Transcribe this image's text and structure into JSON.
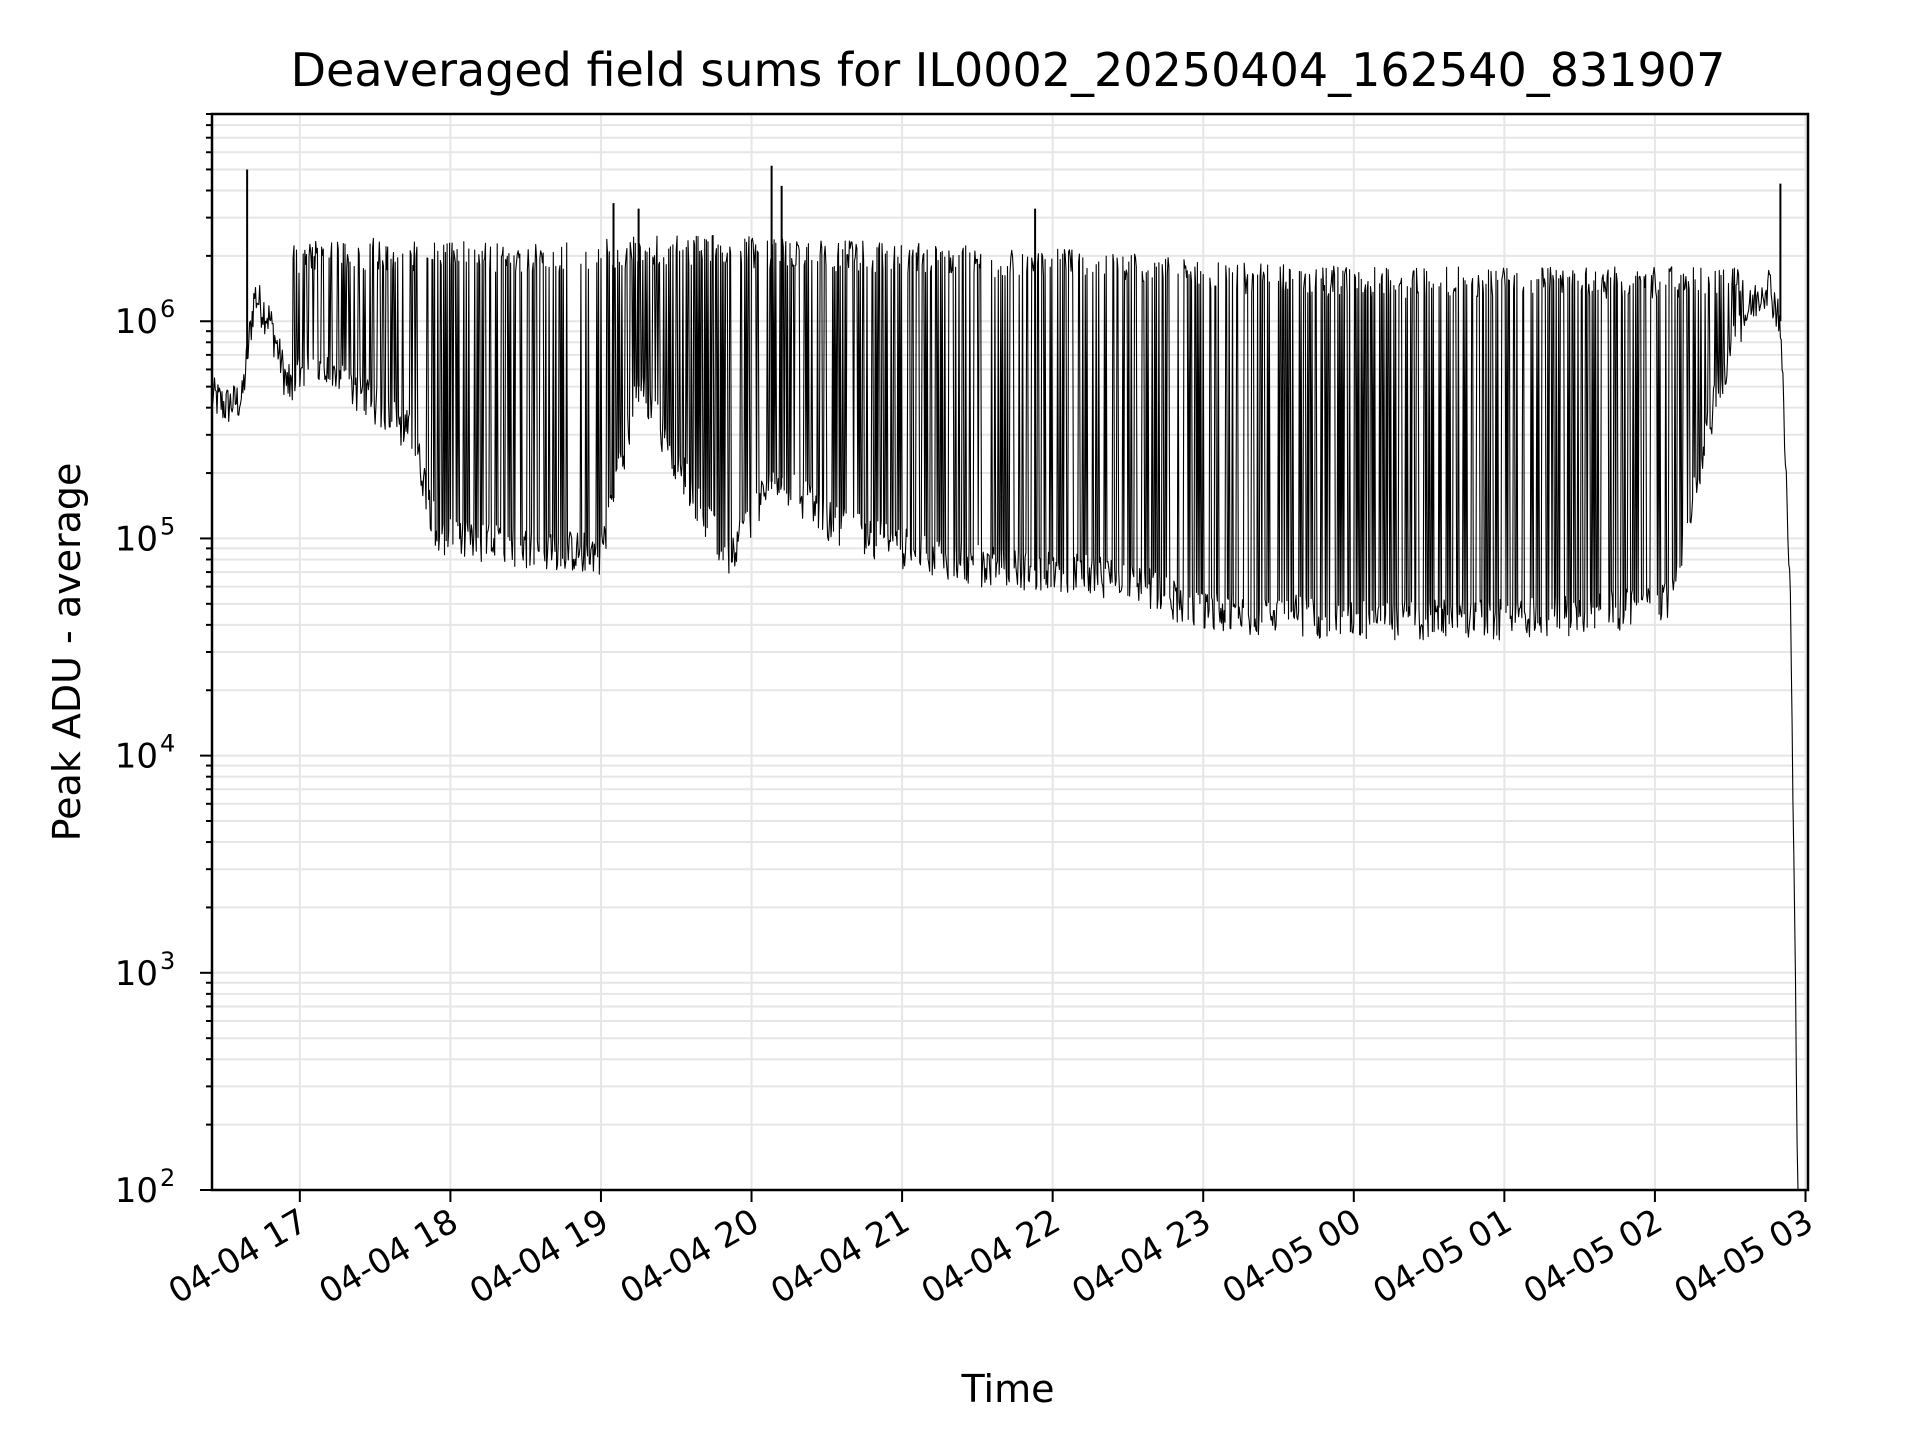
{
  "chart_data": {
    "type": "line",
    "title": "Deaveraged field sums for IL0002_20250404_162540_831907",
    "xlabel": "Time",
    "ylabel": "Peak ADU - average",
    "yscale": "log",
    "xlim": [
      "2025-04-04 16:25",
      "2025-04-05 03:01"
    ],
    "ylim": [
      100,
      9000000
    ],
    "grid": true,
    "grid_color": "#e6e6e6",
    "line_color": "#000000",
    "x_ticks": [
      "04-04 17",
      "04-04 18",
      "04-04 19",
      "04-04 20",
      "04-04 21",
      "04-04 22",
      "04-04 23",
      "04-05 00",
      "04-05 01",
      "04-05 02",
      "04-05 03"
    ],
    "y_ticks": [
      {
        "base": "10",
        "exp": "2"
      },
      {
        "base": "10",
        "exp": "3"
      },
      {
        "base": "10",
        "exp": "4"
      },
      {
        "base": "10",
        "exp": "5"
      },
      {
        "base": "10",
        "exp": "6"
      }
    ],
    "series": [
      {
        "baseline_x": [
          "2025-04-04 16:25",
          "2025-04-04 16:30",
          "2025-04-04 16:37",
          "2025-04-04 16:42",
          "2025-04-04 16:48",
          "2025-04-04 16:55",
          "2025-04-04 17:05",
          "2025-04-04 17:20",
          "2025-04-04 17:45",
          "2025-04-04 17:55",
          "2025-04-04 18:30",
          "2025-04-04 19:00",
          "2025-04-04 19:15",
          "2025-04-04 19:25",
          "2025-04-04 19:50",
          "2025-04-04 20:10",
          "2025-04-04 20:30",
          "2025-04-04 21:00",
          "2025-04-04 21:30",
          "2025-04-04 22:00",
          "2025-04-04 22:30",
          "2025-04-04 23:00",
          "2025-04-04 23:30",
          "2025-04-05 00:00",
          "2025-04-05 00:30",
          "2025-04-05 01:00",
          "2025-04-05 01:30",
          "2025-04-05 02:00",
          "2025-04-05 02:06",
          "2025-04-05 02:15",
          "2025-04-05 02:25",
          "2025-04-05 02:35",
          "2025-04-05 02:45",
          "2025-04-05 02:50",
          "2025-04-05 02:54",
          "2025-04-05 02:57"
        ],
        "baseline_y": [
          450000,
          400000,
          430000,
          1300000,
          1000000,
          500000,
          600000,
          500000,
          300000,
          100000,
          90000,
          85000,
          500000,
          300000,
          80000,
          200000,
          120000,
          90000,
          75000,
          70000,
          65000,
          45000,
          45000,
          42000,
          42000,
          42000,
          45000,
          48000,
          55000,
          150000,
          500000,
          1000000,
          1500000,
          1000000,
          50000,
          100
        ],
        "high_envelope_y": [
          2200000,
          2300000,
          2200000,
          2400000,
          2300000,
          2200000,
          2100000,
          2000000,
          1800000,
          1700000,
          1700000,
          1700000,
          1700000
        ],
        "high_envelope_x": [
          "2025-04-04 16:55",
          "2025-04-04 17:30",
          "2025-04-04 18:30",
          "2025-04-04 19:30",
          "2025-04-04 20:15",
          "2025-04-04 21:00",
          "2025-04-04 21:45",
          "2025-04-04 22:30",
          "2025-04-04 23:00",
          "2025-04-05 00:00",
          "2025-04-05 01:00",
          "2025-04-05 02:00",
          "2025-04-05 02:30"
        ],
        "spikes_x": [
          "2025-04-04 16:39",
          "2025-04-04 19:05",
          "2025-04-04 19:15",
          "2025-04-04 20:08",
          "2025-04-04 20:12",
          "2025-04-04 21:53",
          "2025-04-05 02:50"
        ],
        "spikes_y": [
          5000000,
          3500000,
          3300000,
          5200000,
          4200000,
          3300000,
          4300000
        ]
      }
    ]
  }
}
